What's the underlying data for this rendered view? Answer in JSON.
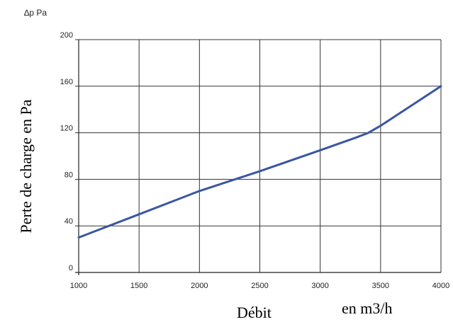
{
  "chart_data": {
    "type": "line",
    "unit_label": "∆p Pa",
    "ylabel": "Perte de charge en Pa",
    "xlabel_left": "Débit",
    "xlabel_right": "en m3/h",
    "xlim": [
      1000,
      4000
    ],
    "ylim": [
      0,
      200
    ],
    "x_ticks": [
      "1000",
      "1500",
      "2000",
      "2500",
      "3000",
      "3500",
      "4000"
    ],
    "y_ticks": [
      "0",
      "40",
      "80",
      "120",
      "160",
      "200"
    ],
    "grid": true,
    "series": [
      {
        "color": "#3a56a3",
        "x": [
          1000,
          1500,
          2000,
          2500,
          3000,
          3300,
          3400,
          3500,
          4000
        ],
        "y": [
          30,
          50,
          70,
          87,
          105,
          116,
          120,
          126,
          160
        ]
      }
    ]
  }
}
